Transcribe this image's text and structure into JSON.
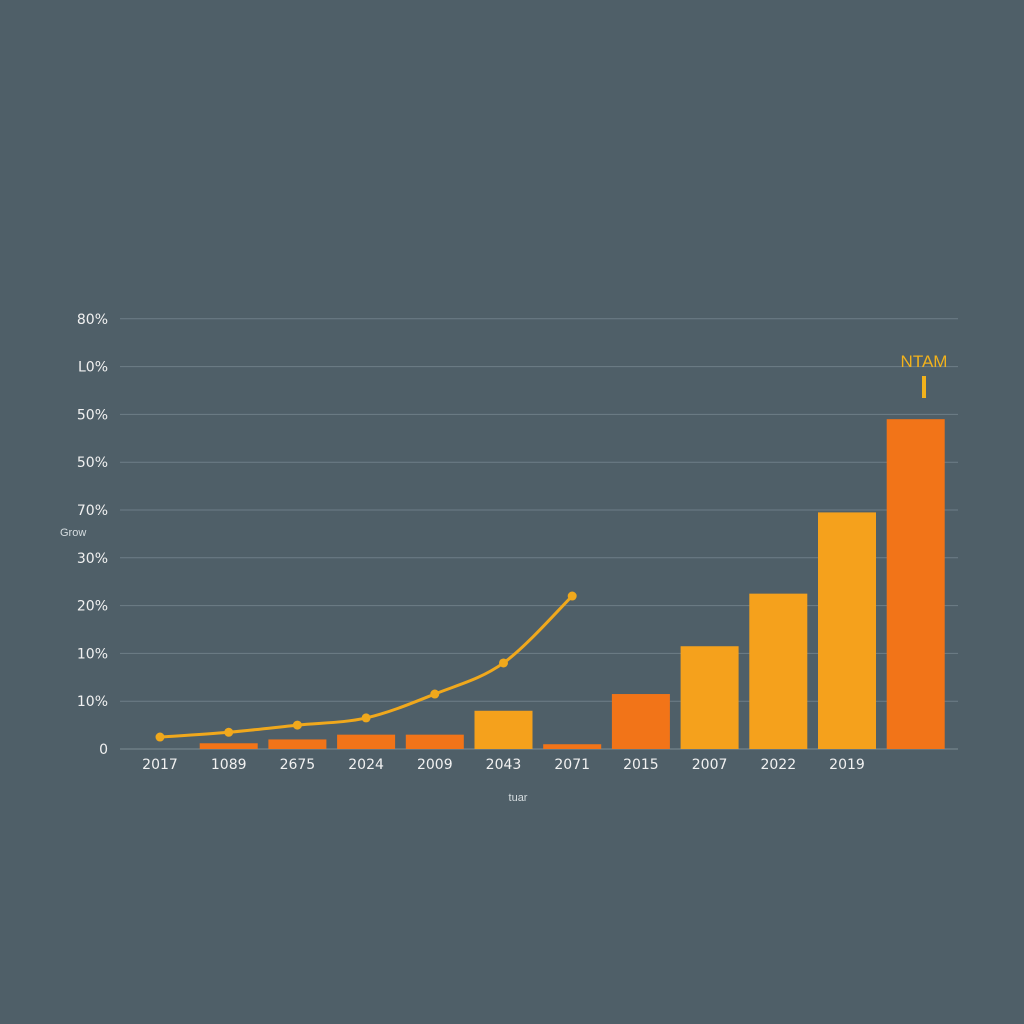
{
  "chart_data": {
    "type": "bar",
    "ylabel": "Grow",
    "xlabel": "tuar",
    "y_tick_labels": [
      "0",
      "10%",
      "10%",
      "20%",
      "30%",
      "70%",
      "50%",
      "50%",
      "L0%",
      "80%"
    ],
    "categories": [
      "2017",
      "1089",
      "2675",
      "2024",
      "2009",
      "2043",
      "2071",
      "2015",
      "2007",
      "2022",
      "2019",
      ""
    ],
    "bars": [
      {
        "category": "1089",
        "value": 0.12,
        "color": "#f27418"
      },
      {
        "category": "2675",
        "value": 0.2,
        "color": "#f27418"
      },
      {
        "category": "2024",
        "value": 0.3,
        "color": "#f27418"
      },
      {
        "category": "2009",
        "value": 0.3,
        "color": "#f27418"
      },
      {
        "category": "2043",
        "value": 0.8,
        "color": "#f5a11c"
      },
      {
        "category": "2071",
        "value": 0.1,
        "color": "#f27418"
      },
      {
        "category": "2015",
        "value": 1.15,
        "color": "#f27418"
      },
      {
        "category": "2007",
        "value": 2.15,
        "color": "#f5a11c"
      },
      {
        "category": "2022",
        "value": 3.25,
        "color": "#f5a11c"
      },
      {
        "category": "2019",
        "value": 4.95,
        "color": "#f5a11c"
      },
      {
        "category": "",
        "value": 6.9,
        "color": "#f27418"
      }
    ],
    "line": {
      "color": "#f0a81c",
      "points": [
        {
          "category": "2017",
          "value": 0.25
        },
        {
          "category": "1089",
          "value": 0.35
        },
        {
          "category": "2675",
          "value": 0.5
        },
        {
          "category": "2024",
          "value": 0.65
        },
        {
          "category": "2009",
          "value": 1.15
        },
        {
          "category": "2043",
          "value": 1.8
        },
        {
          "category": "2071",
          "value": 3.2
        }
      ]
    },
    "annotation": {
      "text": "NTAM",
      "category": "",
      "color": "#f2b21c"
    },
    "grid": true,
    "legend": "none",
    "ylim": [
      0,
      8.8
    ]
  }
}
